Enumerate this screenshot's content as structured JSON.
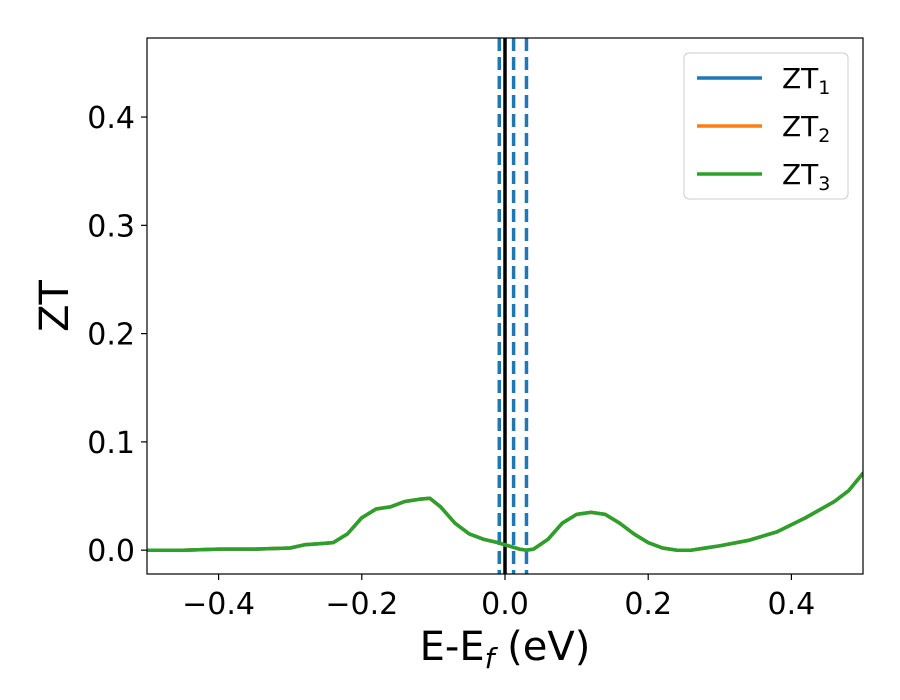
{
  "chart_data": {
    "type": "line",
    "xlabel": "E-E",
    "xlabel_sub": "f",
    "xlabel_unit": " (eV)",
    "ylabel": "ZT",
    "xlim": [
      -0.5,
      0.5
    ],
    "ylim": [
      -0.022,
      0.473
    ],
    "xticks": [
      -0.4,
      -0.2,
      0.0,
      0.2,
      0.4
    ],
    "xtick_labels": [
      "−0.4",
      "−0.2",
      "0.0",
      "0.2",
      "0.4"
    ],
    "yticks": [
      0.0,
      0.1,
      0.2,
      0.3,
      0.4
    ],
    "ytick_labels": [
      "0.0",
      "0.1",
      "0.2",
      "0.3",
      "0.4"
    ],
    "grid": false,
    "legend_position": "top-right",
    "colors": {
      "ZT1": "#1f77b4",
      "ZT2": "#ff7f0e",
      "ZT3": "#2ca02c",
      "fermi": "#000000"
    },
    "legend": [
      {
        "base": "ZT",
        "sub": "1",
        "color": "#1f77b4"
      },
      {
        "base": "ZT",
        "sub": "2",
        "color": "#ff7f0e"
      },
      {
        "base": "ZT",
        "sub": "3",
        "color": "#2ca02c"
      }
    ],
    "vlines": [
      {
        "x": 0.0,
        "color": "#000000",
        "style": "solid"
      },
      {
        "x": -0.008,
        "color": "#1f77b4",
        "style": "dashed"
      },
      {
        "x": 0.012,
        "color": "#1f77b4",
        "style": "dashed"
      },
      {
        "x": 0.03,
        "color": "#1f77b4",
        "style": "dashed"
      }
    ],
    "x": [
      -0.5,
      -0.45,
      -0.4,
      -0.35,
      -0.3,
      -0.28,
      -0.26,
      -0.24,
      -0.22,
      -0.2,
      -0.18,
      -0.16,
      -0.14,
      -0.12,
      -0.105,
      -0.09,
      -0.07,
      -0.05,
      -0.03,
      -0.01,
      0.0,
      0.01,
      0.02,
      0.03,
      0.04,
      0.06,
      0.08,
      0.1,
      0.12,
      0.14,
      0.16,
      0.18,
      0.2,
      0.22,
      0.24,
      0.26,
      0.28,
      0.3,
      0.34,
      0.38,
      0.42,
      0.46,
      0.48,
      0.5
    ],
    "series": [
      {
        "name": "ZT1",
        "color": "#1f77b4",
        "values": [
          0.0,
          0.0,
          0.001,
          0.001,
          0.002,
          0.005,
          0.006,
          0.007,
          0.015,
          0.03,
          0.038,
          0.04,
          0.045,
          0.047,
          0.048,
          0.04,
          0.025,
          0.015,
          0.01,
          0.007,
          0.005,
          0.003,
          0.001,
          0.0,
          0.001,
          0.01,
          0.025,
          0.033,
          0.035,
          0.033,
          0.025,
          0.015,
          0.007,
          0.002,
          0.0,
          0.0,
          0.002,
          0.004,
          0.009,
          0.017,
          0.03,
          0.045,
          0.055,
          0.071
        ]
      },
      {
        "name": "ZT2",
        "color": "#ff7f0e",
        "values": [
          0.0,
          0.0,
          0.001,
          0.001,
          0.002,
          0.005,
          0.006,
          0.007,
          0.015,
          0.03,
          0.038,
          0.04,
          0.045,
          0.047,
          0.048,
          0.04,
          0.025,
          0.015,
          0.01,
          0.007,
          0.005,
          0.003,
          0.001,
          0.0,
          0.001,
          0.01,
          0.025,
          0.033,
          0.035,
          0.033,
          0.025,
          0.015,
          0.007,
          0.002,
          0.0,
          0.0,
          0.002,
          0.004,
          0.009,
          0.017,
          0.03,
          0.045,
          0.055,
          0.071
        ]
      },
      {
        "name": "ZT3",
        "color": "#2ca02c",
        "values": [
          0.0,
          0.0,
          0.001,
          0.001,
          0.002,
          0.005,
          0.006,
          0.007,
          0.015,
          0.03,
          0.038,
          0.04,
          0.045,
          0.047,
          0.048,
          0.04,
          0.025,
          0.015,
          0.01,
          0.007,
          0.005,
          0.003,
          0.001,
          0.0,
          0.001,
          0.01,
          0.025,
          0.033,
          0.035,
          0.033,
          0.025,
          0.015,
          0.007,
          0.002,
          0.0,
          0.0,
          0.002,
          0.004,
          0.009,
          0.017,
          0.03,
          0.045,
          0.055,
          0.071
        ]
      }
    ]
  }
}
